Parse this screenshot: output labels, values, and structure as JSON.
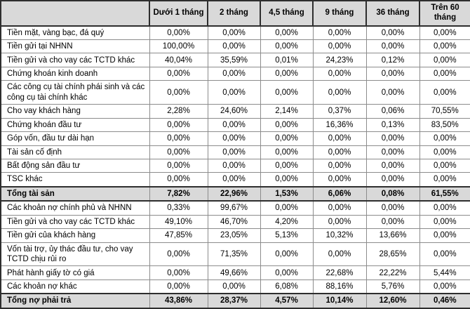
{
  "table": {
    "columns": [
      "",
      "Dưới 1 tháng",
      "2 tháng",
      "4,5 tháng",
      "9 tháng",
      "36 tháng",
      "Trên 60 tháng"
    ],
    "rows": [
      {
        "label": "Tiền mặt, vàng bạc, đá quý",
        "type": "regular",
        "values": [
          "0,00%",
          "0,00%",
          "0,00%",
          "0,00%",
          "0,00%",
          "0,00%"
        ]
      },
      {
        "label": "Tiền gửi tại NHNN",
        "type": "regular",
        "values": [
          "100,00%",
          "0,00%",
          "0,00%",
          "0,00%",
          "0,00%",
          "0,00%"
        ]
      },
      {
        "label": "Tiền gửi và cho vay các TCTD khác",
        "type": "regular",
        "values": [
          "40,04%",
          "35,59%",
          "0,01%",
          "24,23%",
          "0,12%",
          "0,00%"
        ]
      },
      {
        "label": "Chứng khoán kinh doanh",
        "type": "regular",
        "values": [
          "0,00%",
          "0,00%",
          "0,00%",
          "0,00%",
          "0,00%",
          "0,00%"
        ]
      },
      {
        "label": "Các công cụ tài chính phái sinh và các công cụ tài chính khác",
        "type": "regular",
        "values": [
          "0,00%",
          "0,00%",
          "0,00%",
          "0,00%",
          "0,00%",
          "0,00%"
        ]
      },
      {
        "label": "Cho vay khách hàng",
        "type": "regular",
        "values": [
          "2,28%",
          "24,60%",
          "2,14%",
          "0,37%",
          "0,06%",
          "70,55%"
        ]
      },
      {
        "label": "Chứng khoán đầu tư",
        "type": "regular",
        "values": [
          "0,00%",
          "0,00%",
          "0,00%",
          "16,36%",
          "0,13%",
          "83,50%"
        ]
      },
      {
        "label": "Góp vốn, đầu tư dài hạn",
        "type": "regular",
        "values": [
          "0,00%",
          "0,00%",
          "0,00%",
          "0,00%",
          "0,00%",
          "0,00%"
        ]
      },
      {
        "label": "Tài sản cố định",
        "type": "regular",
        "values": [
          "0,00%",
          "0,00%",
          "0,00%",
          "0,00%",
          "0,00%",
          "0,00%"
        ]
      },
      {
        "label": "Bất động sản đầu tư",
        "type": "regular",
        "values": [
          "0,00%",
          "0,00%",
          "0,00%",
          "0,00%",
          "0,00%",
          "0,00%"
        ]
      },
      {
        "label": "TSC khác",
        "type": "regular",
        "values": [
          "0,00%",
          "0,00%",
          "0,00%",
          "0,00%",
          "0,00%",
          "0,00%"
        ]
      },
      {
        "label": "Tổng tài sản",
        "type": "total",
        "values": [
          "7,82%",
          "22,96%",
          "1,53%",
          "6,06%",
          "0,08%",
          "61,55%"
        ]
      },
      {
        "label": "Các khoản nợ chính phủ và NHNN",
        "type": "regular",
        "values": [
          "0,33%",
          "99,67%",
          "0,00%",
          "0,00%",
          "0,00%",
          "0,00%"
        ]
      },
      {
        "label": "Tiền gửi và cho vay các TCTD khác",
        "type": "regular",
        "values": [
          "49,10%",
          "46,70%",
          "4,20%",
          "0,00%",
          "0,00%",
          "0,00%"
        ]
      },
      {
        "label": "Tiền gửi của khách hàng",
        "type": "regular",
        "values": [
          "47,85%",
          "23,05%",
          "5,13%",
          "10,32%",
          "13,66%",
          "0,00%"
        ]
      },
      {
        "label": "Vốn tài trợ, ủy thác đầu tư, cho vay TCTD chịu rủi ro",
        "type": "regular",
        "values": [
          "0,00%",
          "71,35%",
          "0,00%",
          "0,00%",
          "28,65%",
          "0,00%"
        ]
      },
      {
        "label": "Phát hành giấy tờ có giá",
        "type": "regular",
        "values": [
          "0,00%",
          "49,66%",
          "0,00%",
          "22,68%",
          "22,22%",
          "5,44%"
        ]
      },
      {
        "label": "Các khoản nợ khác",
        "type": "regular",
        "values": [
          "0,00%",
          "0,00%",
          "6,08%",
          "88,16%",
          "5,76%",
          "0,00%"
        ]
      },
      {
        "label": "Tổng nợ phải trả",
        "type": "total",
        "values": [
          "43,86%",
          "28,37%",
          "4,57%",
          "10,14%",
          "12,60%",
          "0,46%"
        ]
      }
    ],
    "colors": {
      "header_bg": "#d9d9d9",
      "total_bg": "#d9d9d9",
      "grid": "#8c8c8c",
      "major_border": "#2e2e2e",
      "text": "#000000"
    }
  }
}
